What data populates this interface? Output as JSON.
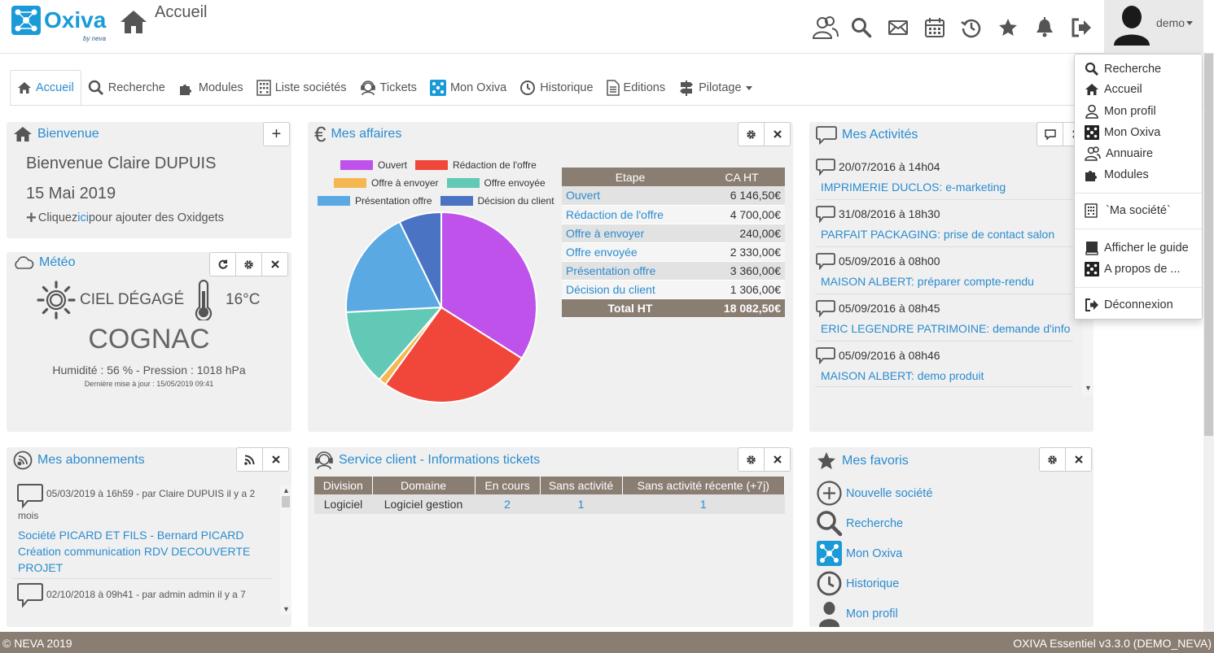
{
  "app": {
    "logo_text": "Oxiva",
    "logo_sub": "by neva",
    "page_title": "Accueil"
  },
  "topbar": {
    "icons": [
      "contacts-icon",
      "search-icon",
      "mail-icon",
      "calendar-icon",
      "history-icon",
      "star-icon",
      "bell-icon",
      "logout-icon"
    ],
    "user": "demo"
  },
  "tabs": [
    {
      "label": "Accueil",
      "icon": "home-icon",
      "active": true
    },
    {
      "label": "Recherche",
      "icon": "search-icon"
    },
    {
      "label": "Modules",
      "icon": "puzzle-icon"
    },
    {
      "label": "Liste sociétés",
      "icon": "building-icon"
    },
    {
      "label": "Tickets",
      "icon": "support-icon"
    },
    {
      "label": "Mon Oxiva",
      "icon": "oxiva-icon"
    },
    {
      "label": "Historique",
      "icon": "history-icon"
    },
    {
      "label": "Editions",
      "icon": "document-icon"
    },
    {
      "label": "Pilotage",
      "icon": "signpost-icon",
      "dropdown": true
    }
  ],
  "bienvenue": {
    "title": "Bienvenue",
    "greeting": "Bienvenue Claire DUPUIS",
    "date": "15 Mai 2019",
    "hint_pre": "Cliquez ",
    "hint_link": "ici",
    "hint_post": " pour ajouter des Oxidgets",
    "add_label": "+"
  },
  "meteo": {
    "title": "Météo",
    "sky": "CIEL DÉGAGÉ",
    "temp": "16°C",
    "city": "COGNAC",
    "details": "Humidité : 56 % - Pression : 1018 hPa",
    "updated": "Dernière mise à jour : 15/05/2019 09:41"
  },
  "affaires": {
    "title": "Mes affaires",
    "headers": [
      "Etape",
      "CA HT"
    ],
    "rows": [
      {
        "etape": "Ouvert",
        "ca": "6 146,50€"
      },
      {
        "etape": "Rédaction de l'offre",
        "ca": "4 700,00€"
      },
      {
        "etape": "Offre à envoyer",
        "ca": "240,00€"
      },
      {
        "etape": "Offre envoyée",
        "ca": "2 330,00€"
      },
      {
        "etape": "Présentation offre",
        "ca": "3 360,00€"
      },
      {
        "etape": "Décision du client",
        "ca": "1 306,00€"
      }
    ],
    "total_label": "Total HT",
    "total_value": "18 082,50€"
  },
  "chart_data": {
    "type": "pie",
    "categories": [
      "Ouvert",
      "Rédaction de l'offre",
      "Offre à envoyer",
      "Offre envoyée",
      "Présentation offre",
      "Décision du client"
    ],
    "values": [
      6146.5,
      4700,
      240,
      2330,
      3360,
      1306
    ],
    "colors": [
      "#c052ec",
      "#f0473a",
      "#f5b851",
      "#61c9b5",
      "#5aa9e3",
      "#4a73c4"
    ],
    "legend": "top"
  },
  "activites": {
    "title": "Mes Activités",
    "items": [
      {
        "date": "20/07/2016 à 14h04",
        "text": "IMPRIMERIE DUCLOS: e-marketing"
      },
      {
        "date": "31/08/2016 à 18h30",
        "text": "PARFAIT PACKAGING: prise de contact salon"
      },
      {
        "date": "05/09/2016 à 08h00",
        "text": "MAISON ALBERT: préparer compte-rendu"
      },
      {
        "date": "05/09/2016 à 08h45",
        "text": "ERIC LEGENDRE PATRIMOINE: demande d'info"
      },
      {
        "date": "05/09/2016 à 08h46",
        "text": "MAISON ALBERT: demo produit"
      }
    ]
  },
  "abonnements": {
    "title": "Mes abonnements",
    "items": [
      {
        "meta1": "05/03/2019 à 16h59 - par Claire DUPUIS il y a 2",
        "meta2": "mois",
        "lines": [
          "Société PICARD ET FILS - Bernard PICARD",
          "Création communication RDV DECOUVERTE",
          "PROJET"
        ]
      },
      {
        "meta1": "02/10/2018 à 09h41 - par admin admin il y a 7",
        "meta2": "",
        "lines": []
      }
    ]
  },
  "tickets": {
    "title": "Service client - Informations tickets",
    "headers": [
      "Division",
      "Domaine",
      "En cours",
      "Sans activité",
      "Sans activité récente (+7j)"
    ],
    "row": [
      "Logiciel",
      "Logiciel gestion",
      "2",
      "1",
      "1"
    ]
  },
  "favoris": {
    "title": "Mes favoris",
    "items": [
      {
        "label": "Nouvelle société",
        "icon": "plus-circle-icon"
      },
      {
        "label": "Recherche",
        "icon": "search-icon"
      },
      {
        "label": "Mon Oxiva",
        "icon": "oxiva-icon"
      },
      {
        "label": "Historique",
        "icon": "history-icon"
      },
      {
        "label": "Mon profil",
        "icon": "user-icon"
      }
    ]
  },
  "user_menu": {
    "items": [
      {
        "label": "Recherche",
        "icon": "search-icon"
      },
      {
        "label": "Accueil",
        "icon": "home-icon"
      },
      {
        "label": "Mon profil",
        "icon": "user-icon"
      },
      {
        "label": "Mon Oxiva",
        "icon": "oxiva-icon"
      },
      {
        "label": "Annuaire",
        "icon": "contacts-icon"
      },
      {
        "label": "Modules",
        "icon": "puzzle-icon"
      },
      {
        "label": "`Ma société`",
        "icon": "building-icon"
      },
      {
        "label": "Afficher le guide",
        "icon": "guide-icon"
      },
      {
        "label": "A propos de ...",
        "icon": "oxiva-icon"
      },
      {
        "label": "Déconnexion",
        "icon": "logout-icon"
      }
    ]
  },
  "footer": {
    "left": "© NEVA 2019",
    "right": "OXIVA Essentiel v3.3.0 (DEMO_NEVA)"
  }
}
